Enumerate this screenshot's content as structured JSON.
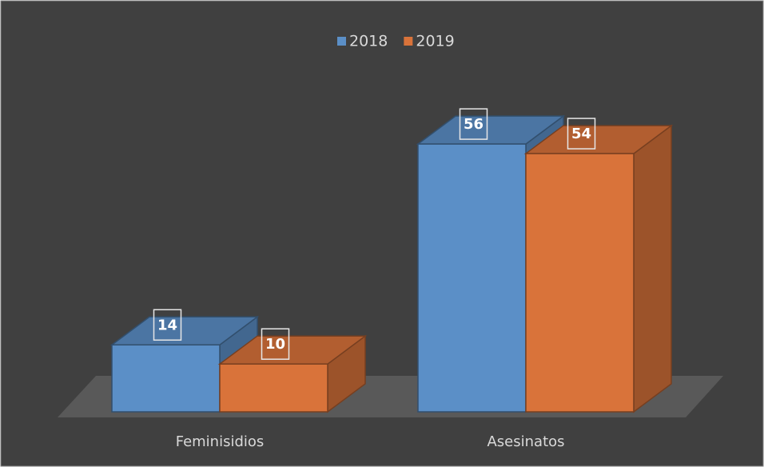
{
  "chart_data": {
    "type": "bar3d",
    "categories": [
      "Feminisidios",
      "Asesinatos"
    ],
    "series": [
      {
        "name": "2018",
        "color": "#5b8fc7",
        "values": [
          14,
          56
        ]
      },
      {
        "name": "2019",
        "color": "#d9733a",
        "values": [
          10,
          54
        ]
      }
    ],
    "legend": "top"
  }
}
